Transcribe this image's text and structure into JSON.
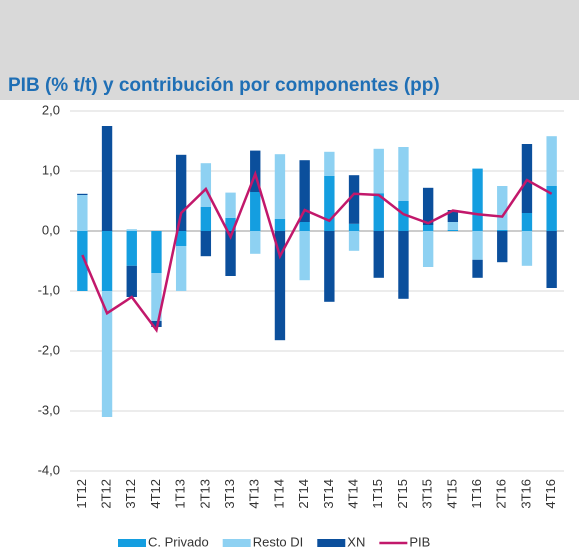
{
  "chart_data": {
    "type": "bar",
    "title": "PIB (% t/t) y contribución por componentes (pp)",
    "categories": [
      "1T12",
      "2T12",
      "3T12",
      "4T12",
      "1T13",
      "2T13",
      "3T13",
      "4T13",
      "1T14",
      "2T14",
      "3T14",
      "4T14",
      "1T15",
      "2T15",
      "3T15",
      "4T15",
      "1T16",
      "2T16",
      "3T16",
      "4T16"
    ],
    "series": [
      {
        "name": "C. Privado",
        "color": "#149ee0",
        "values": [
          -1.0,
          -1.0,
          -0.58,
          -0.7,
          -0.25,
          0.4,
          0.22,
          0.65,
          0.2,
          0.15,
          0.92,
          0.12,
          0.63,
          0.5,
          0.1,
          0.02,
          1.04,
          0.02,
          0.3,
          0.75
        ]
      },
      {
        "name": "Resto DI",
        "color": "#8ed1f2",
        "values": [
          0.6,
          -2.1,
          0.03,
          -0.8,
          -0.75,
          0.73,
          0.42,
          -0.38,
          1.08,
          -0.82,
          0.4,
          -0.33,
          0.74,
          0.9,
          -0.6,
          0.13,
          -0.48,
          0.73,
          -0.58,
          0.83
        ]
      },
      {
        "name": "XN",
        "color": "#0b4f9c",
        "values": [
          0.02,
          1.75,
          -0.52,
          -0.1,
          1.27,
          -0.42,
          -0.75,
          0.69,
          -1.82,
          1.03,
          -1.18,
          0.81,
          -0.78,
          -1.13,
          0.62,
          0.2,
          -0.3,
          -0.52,
          1.15,
          -0.95
        ]
      },
      {
        "name": "PIB",
        "type": "line",
        "color": "#c2186b",
        "values": [
          -0.4,
          -1.37,
          -1.1,
          -1.65,
          0.3,
          0.7,
          -0.1,
          0.95,
          -0.42,
          0.35,
          0.17,
          0.62,
          0.6,
          0.28,
          0.13,
          0.34,
          0.28,
          0.24,
          0.85,
          0.62
        ]
      }
    ],
    "ylim": [
      -4,
      2
    ],
    "yticks": [
      {
        "value": -4,
        "label": "-4,0"
      },
      {
        "value": -3,
        "label": "-3,0"
      },
      {
        "value": -2,
        "label": "-2,0"
      },
      {
        "value": -1,
        "label": "-1,0"
      },
      {
        "value": 0,
        "label": "0,0"
      },
      {
        "value": 1,
        "label": "1,0"
      },
      {
        "value": 2,
        "label": "2,0"
      }
    ],
    "grid": true,
    "legend": "bottom"
  }
}
